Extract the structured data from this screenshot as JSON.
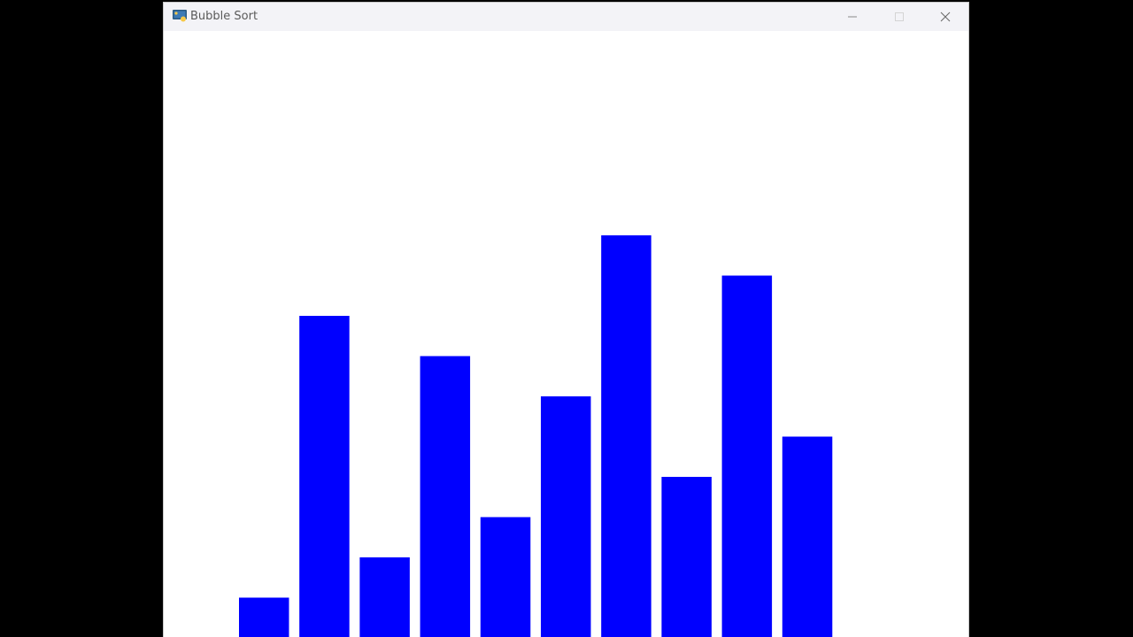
{
  "window": {
    "title": "Bubble Sort"
  },
  "icons": {
    "app": "python-icon",
    "minimize": "minimize-icon",
    "maximize": "maximize-icon",
    "close": "close-icon"
  },
  "colors": {
    "bar": "#0000ff",
    "background": "#ffffff",
    "desktop": "#000000"
  },
  "chart_data": {
    "type": "bar",
    "values": [
      1,
      8,
      2,
      7,
      3,
      6,
      10,
      4,
      9,
      5
    ],
    "ylim": [
      0,
      10
    ],
    "grid": false
  }
}
